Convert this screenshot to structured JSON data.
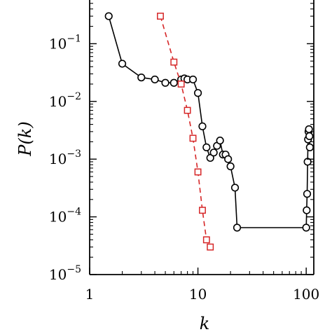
{
  "chart_data": {
    "type": "line",
    "xlabel": "k",
    "ylabel": "P(k)",
    "xscale": "log",
    "yscale": "log",
    "xlim": [
      1,
      120
    ],
    "ylim": [
      1e-05,
      1
    ],
    "x_ticks": [
      {
        "value": 1,
        "base": "1",
        "exp": ""
      },
      {
        "value": 10,
        "base": "10",
        "exp": ""
      },
      {
        "value": 100,
        "base": "100",
        "exp": ""
      }
    ],
    "y_ticks": [
      {
        "value": 1e-05,
        "base": "10",
        "exp": "−5"
      },
      {
        "value": 0.0001,
        "base": "10",
        "exp": "−4"
      },
      {
        "value": 0.001,
        "base": "10",
        "exp": "−3"
      },
      {
        "value": 0.01,
        "base": "10",
        "exp": "−2"
      },
      {
        "value": 0.1,
        "base": "10",
        "exp": "−1"
      }
    ],
    "grid": false,
    "series": [
      {
        "marker": "circle",
        "line_style": "solid",
        "color": "#000000",
        "x": [
          1.5,
          2,
          3,
          4,
          5,
          6,
          7,
          7.5,
          8,
          9,
          10,
          11,
          12,
          13,
          14,
          15,
          16,
          17,
          18,
          19,
          20,
          22,
          23,
          100,
          101,
          102,
          103,
          104,
          105,
          106,
          107,
          108
        ],
        "y": [
          0.3,
          0.045,
          0.026,
          0.024,
          0.021,
          0.021,
          0.024,
          0.025,
          0.024,
          0.024,
          0.014,
          0.0037,
          0.0016,
          0.00105,
          0.0013,
          0.0017,
          0.0021,
          0.0012,
          0.0012,
          0.001,
          0.00075,
          0.00032,
          6.5e-05,
          6.5e-05,
          0.00013,
          0.00025,
          0.0009,
          0.0022,
          0.003,
          0.0033,
          0.0025,
          0.0016
        ]
      },
      {
        "marker": "square",
        "line_style": "dashed",
        "color": "#d62728",
        "x": [
          4.5,
          6,
          7,
          8,
          9,
          10,
          11,
          12,
          13
        ],
        "y": [
          0.3,
          0.048,
          0.02,
          0.007,
          0.0023,
          0.0006,
          0.00013,
          4e-05,
          3e-05
        ]
      }
    ]
  }
}
